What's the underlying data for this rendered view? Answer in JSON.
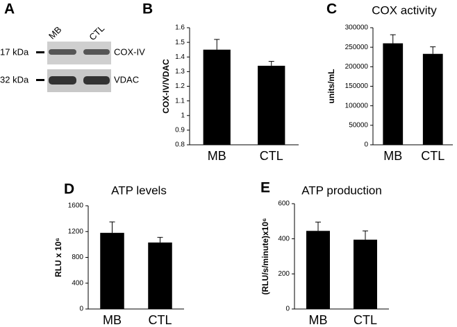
{
  "blot": {
    "panel": "A",
    "lanes": [
      "MB",
      "CTL"
    ],
    "rows": [
      {
        "size": "17 kDa",
        "protein": "COX-IV"
      },
      {
        "size": "32 kDa",
        "protein": "VDAC"
      }
    ]
  },
  "chart_data": [
    {
      "type": "bar",
      "panel": "B",
      "ylabel": "COX-IV/VDAC",
      "categories": [
        "MB",
        "CTL"
      ],
      "values": [
        1.45,
        1.34
      ],
      "errors": [
        0.07,
        0.03
      ],
      "color": "#000000",
      "ylim": [
        0.8,
        1.6
      ],
      "yticks": [
        0.8,
        0.9,
        1,
        1.1,
        1.2,
        1.3,
        1.4,
        1.5,
        1.6
      ]
    },
    {
      "type": "bar",
      "panel": "C",
      "title": "COX activity",
      "ylabel": "units/mL",
      "categories": [
        "MB",
        "CTL"
      ],
      "values": [
        260000,
        233000
      ],
      "errors": [
        22000,
        18000
      ],
      "color": "#000000",
      "ylim": [
        0,
        300000
      ],
      "yticks": [
        0,
        50000,
        100000,
        150000,
        200000,
        250000,
        300000
      ]
    },
    {
      "type": "bar",
      "panel": "D",
      "title": "ATP levels",
      "ylabel": "RLU x 10⁶",
      "categories": [
        "MB",
        "CTL"
      ],
      "values": [
        1180,
        1030
      ],
      "errors": [
        170,
        80
      ],
      "color": "#000000",
      "ylim": [
        0,
        1600
      ],
      "yticks": [
        0,
        400,
        800,
        1200,
        1600
      ]
    },
    {
      "type": "bar",
      "panel": "E",
      "title": "ATP production",
      "ylabel": "(RLU/s/minute)x10⁶",
      "categories": [
        "MB",
        "CTL"
      ],
      "values": [
        445,
        395
      ],
      "errors": [
        50,
        50
      ],
      "color": "#000000",
      "ylim": [
        0,
        600
      ],
      "yticks": [
        0,
        200,
        400,
        600
      ]
    }
  ]
}
